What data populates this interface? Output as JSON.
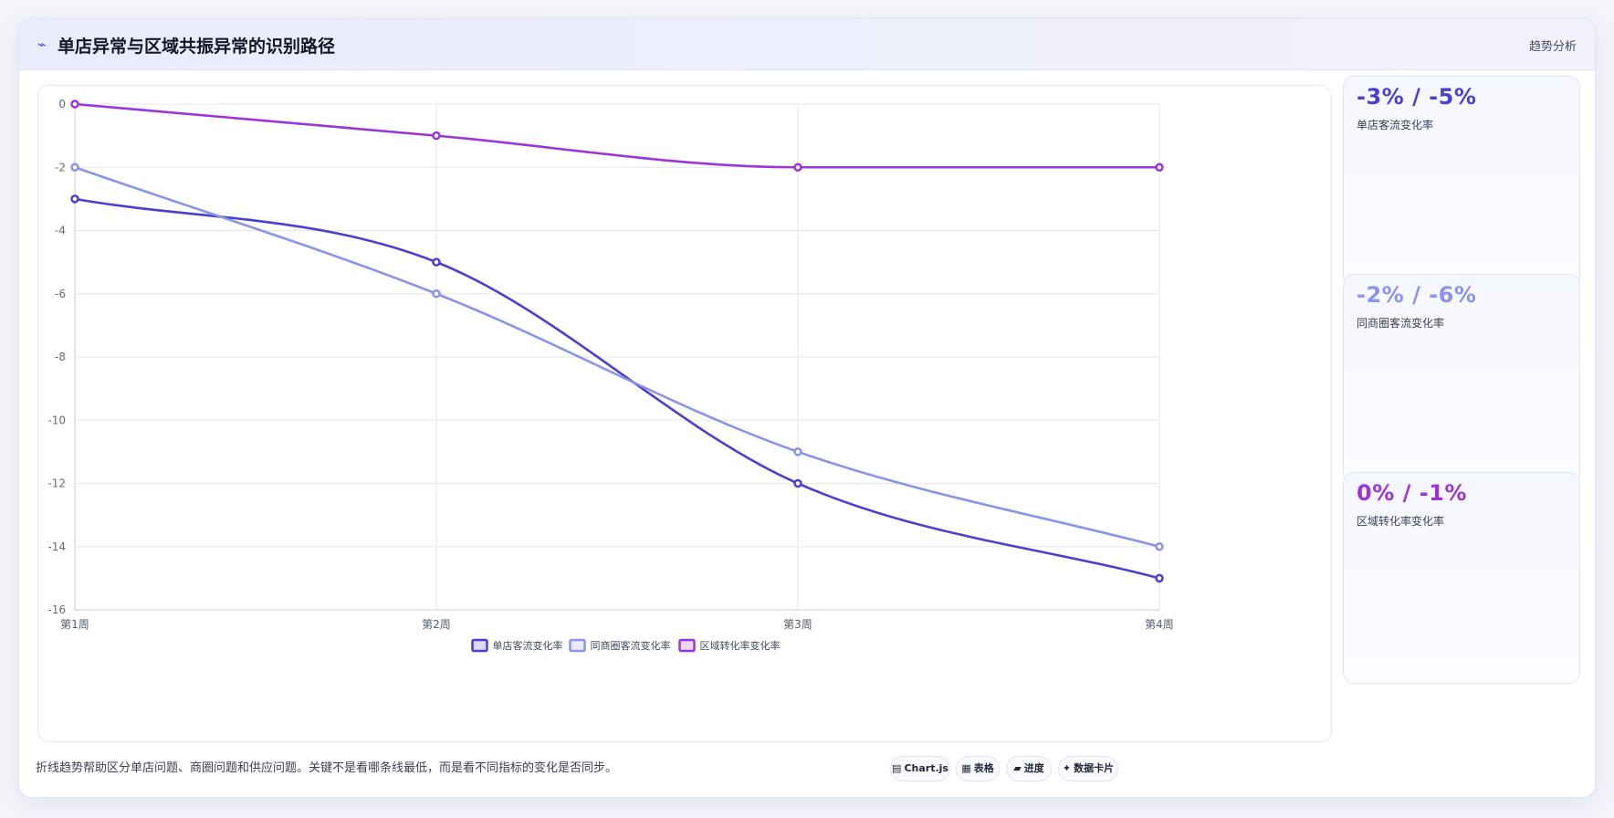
{
  "header": {
    "icon": "bolt-icon",
    "title": "单店异常与区域共振异常的识别路径",
    "tag": "趋势分析"
  },
  "chart_data": {
    "type": "line",
    "categories": [
      "第1周",
      "第2周",
      "第3周",
      "第4周"
    ],
    "series": [
      {
        "name": "单店客流变化率",
        "values": [
          -3,
          -5,
          -12,
          -15
        ],
        "color": "#4b3fd0"
      },
      {
        "name": "同商圈客流变化率",
        "values": [
          -2,
          -6,
          -11,
          -14
        ],
        "color": "#8a94e8"
      },
      {
        "name": "区域转化率变化率",
        "values": [
          0,
          -1,
          -2,
          -2
        ],
        "color": "#9b35d9"
      }
    ],
    "ylim": [
      -16,
      0
    ],
    "yticks": [
      0,
      -2,
      -4,
      -6,
      -8,
      -10,
      -12,
      -14,
      -16
    ],
    "grid": true,
    "legend": "bottom",
    "title": "",
    "xlabel": "",
    "ylabel": ""
  },
  "stats": [
    {
      "value": "-3% / -5%",
      "label": "单店客流变化率",
      "color": "#4b3fd0"
    },
    {
      "value": "-2% / -6%",
      "label": "同商圈客流变化率",
      "color": "#8a94e8"
    },
    {
      "value": "0% / -1%",
      "label": "区域转化率变化率",
      "color": "#9b35d9"
    }
  ],
  "footer": {
    "note": "折线趋势帮助区分单店问题、商圈问题和供应问题。关键不是看哪条线最低，而是看不同指标的变化是否同步。",
    "pills": [
      {
        "icon": "chart-icon",
        "glyph": "▤",
        "label": "Chart.js"
      },
      {
        "icon": "table-icon",
        "glyph": "▦",
        "label": "表格"
      },
      {
        "icon": "progress-icon",
        "glyph": "▰",
        "label": "进度"
      },
      {
        "icon": "sparkle-icon",
        "glyph": "✦",
        "label": "数据卡片"
      }
    ]
  }
}
